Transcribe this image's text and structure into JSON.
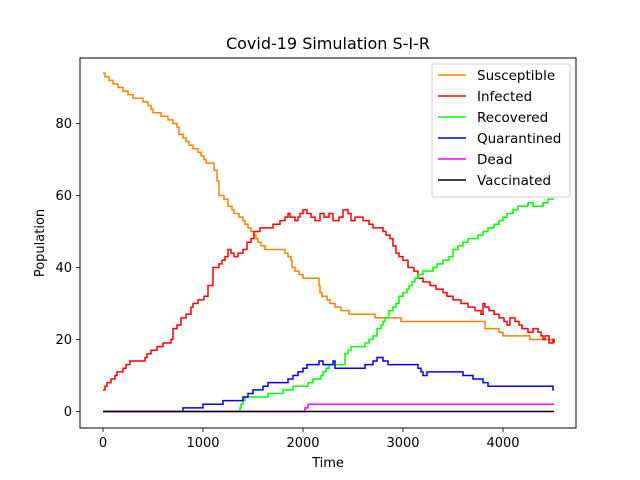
{
  "chart_data": {
    "type": "line",
    "title": "Covid-19 Simulation S-I-R",
    "xlabel": "Time",
    "ylabel": "Population",
    "xlim": [
      -230,
      4730
    ],
    "ylim": [
      -4.6,
      98.2
    ],
    "x_ticks": [
      0,
      1000,
      2000,
      3000,
      4000
    ],
    "x_tick_labels": [
      "0",
      "1000",
      "2000",
      "3000",
      "4000"
    ],
    "y_ticks": [
      0,
      20,
      40,
      60,
      80
    ],
    "y_tick_labels": [
      "0",
      "20",
      "40",
      "60",
      "80"
    ],
    "grid": false,
    "legend_position": "upper-right",
    "series": [
      {
        "name": "Susceptible",
        "color": "#ff8000",
        "points": [
          [
            0,
            94
          ],
          [
            20,
            93
          ],
          [
            60,
            92
          ],
          [
            100,
            91
          ],
          [
            150,
            90
          ],
          [
            200,
            89
          ],
          [
            250,
            88
          ],
          [
            300,
            87
          ],
          [
            400,
            86
          ],
          [
            450,
            85
          ],
          [
            480,
            84
          ],
          [
            500,
            83
          ],
          [
            580,
            82
          ],
          [
            650,
            81
          ],
          [
            700,
            80
          ],
          [
            740,
            79
          ],
          [
            760,
            77
          ],
          [
            800,
            76
          ],
          [
            830,
            75
          ],
          [
            860,
            74
          ],
          [
            900,
            73
          ],
          [
            950,
            72
          ],
          [
            980,
            71
          ],
          [
            1010,
            70
          ],
          [
            1030,
            69
          ],
          [
            1080,
            69
          ],
          [
            1110,
            67
          ],
          [
            1140,
            64
          ],
          [
            1160,
            60
          ],
          [
            1210,
            59
          ],
          [
            1250,
            57
          ],
          [
            1290,
            56
          ],
          [
            1310,
            55
          ],
          [
            1360,
            54
          ],
          [
            1400,
            53
          ],
          [
            1420,
            52
          ],
          [
            1450,
            51
          ],
          [
            1480,
            50
          ],
          [
            1510,
            49
          ],
          [
            1530,
            48
          ],
          [
            1550,
            47
          ],
          [
            1580,
            46
          ],
          [
            1620,
            45
          ],
          [
            1660,
            45
          ],
          [
            1800,
            45
          ],
          [
            1820,
            44
          ],
          [
            1850,
            43
          ],
          [
            1880,
            42
          ],
          [
            1890,
            40
          ],
          [
            1920,
            39
          ],
          [
            1960,
            38
          ],
          [
            2000,
            37
          ],
          [
            2140,
            37
          ],
          [
            2160,
            35
          ],
          [
            2170,
            33
          ],
          [
            2190,
            32
          ],
          [
            2240,
            31
          ],
          [
            2270,
            30
          ],
          [
            2320,
            29
          ],
          [
            2380,
            28
          ],
          [
            2460,
            27
          ],
          [
            2720,
            26
          ],
          [
            2980,
            25
          ],
          [
            3800,
            25
          ],
          [
            3820,
            23
          ],
          [
            3960,
            22
          ],
          [
            4000,
            21
          ],
          [
            4200,
            21
          ],
          [
            4270,
            20
          ],
          [
            4500,
            20
          ],
          [
            4510,
            19
          ]
        ]
      },
      {
        "name": "Infected",
        "color": "#ff0000",
        "points": [
          [
            0,
            6
          ],
          [
            20,
            7
          ],
          [
            40,
            8
          ],
          [
            80,
            9
          ],
          [
            120,
            10
          ],
          [
            140,
            11
          ],
          [
            200,
            12
          ],
          [
            230,
            13
          ],
          [
            270,
            14
          ],
          [
            320,
            14
          ],
          [
            420,
            15
          ],
          [
            440,
            16
          ],
          [
            480,
            17
          ],
          [
            540,
            18
          ],
          [
            600,
            19
          ],
          [
            680,
            20
          ],
          [
            700,
            23
          ],
          [
            740,
            24
          ],
          [
            780,
            26
          ],
          [
            830,
            27
          ],
          [
            880,
            29
          ],
          [
            900,
            30
          ],
          [
            950,
            31
          ],
          [
            1010,
            32
          ],
          [
            1050,
            35
          ],
          [
            1100,
            40
          ],
          [
            1160,
            41
          ],
          [
            1190,
            42
          ],
          [
            1220,
            43
          ],
          [
            1250,
            45
          ],
          [
            1280,
            44
          ],
          [
            1310,
            43
          ],
          [
            1350,
            44
          ],
          [
            1400,
            45
          ],
          [
            1440,
            47
          ],
          [
            1480,
            48
          ],
          [
            1510,
            50
          ],
          [
            1570,
            51
          ],
          [
            1630,
            51
          ],
          [
            1700,
            52
          ],
          [
            1770,
            53
          ],
          [
            1820,
            54
          ],
          [
            1850,
            55
          ],
          [
            1870,
            54
          ],
          [
            1920,
            53
          ],
          [
            1950,
            54
          ],
          [
            1970,
            55
          ],
          [
            2000,
            56
          ],
          [
            2040,
            55
          ],
          [
            2080,
            54
          ],
          [
            2120,
            53
          ],
          [
            2170,
            55
          ],
          [
            2210,
            54
          ],
          [
            2260,
            55
          ],
          [
            2300,
            53
          ],
          [
            2360,
            54
          ],
          [
            2400,
            56
          ],
          [
            2450,
            55
          ],
          [
            2480,
            53
          ],
          [
            2520,
            54
          ],
          [
            2600,
            53
          ],
          [
            2660,
            52
          ],
          [
            2700,
            51
          ],
          [
            2800,
            50
          ],
          [
            2830,
            49
          ],
          [
            2870,
            48
          ],
          [
            2900,
            46
          ],
          [
            2930,
            44
          ],
          [
            2960,
            43
          ],
          [
            3000,
            42
          ],
          [
            3050,
            40
          ],
          [
            3110,
            39
          ],
          [
            3150,
            37
          ],
          [
            3200,
            36
          ],
          [
            3270,
            35
          ],
          [
            3330,
            34
          ],
          [
            3400,
            33
          ],
          [
            3440,
            32
          ],
          [
            3500,
            31
          ],
          [
            3580,
            30
          ],
          [
            3650,
            29
          ],
          [
            3720,
            28
          ],
          [
            3780,
            27
          ],
          [
            3800,
            30
          ],
          [
            3820,
            29
          ],
          [
            3860,
            28
          ],
          [
            3910,
            27
          ],
          [
            3960,
            26
          ],
          [
            4010,
            25
          ],
          [
            4040,
            24
          ],
          [
            4070,
            26
          ],
          [
            4120,
            25
          ],
          [
            4160,
            24
          ],
          [
            4190,
            23
          ],
          [
            4250,
            22
          ],
          [
            4300,
            23
          ],
          [
            4350,
            22
          ],
          [
            4380,
            21
          ],
          [
            4400,
            20
          ],
          [
            4420,
            21
          ],
          [
            4460,
            19
          ],
          [
            4500,
            20
          ],
          [
            4510,
            19
          ]
        ]
      },
      {
        "name": "Recovered",
        "color": "#00ff00",
        "points": [
          [
            1350,
            0
          ],
          [
            1370,
            1
          ],
          [
            1380,
            2
          ],
          [
            1400,
            3
          ],
          [
            1420,
            4
          ],
          [
            1600,
            4
          ],
          [
            1650,
            5
          ],
          [
            1750,
            5
          ],
          [
            1800,
            6
          ],
          [
            1900,
            7
          ],
          [
            2000,
            7
          ],
          [
            2050,
            8
          ],
          [
            2100,
            9
          ],
          [
            2180,
            10
          ],
          [
            2200,
            11
          ],
          [
            2230,
            12
          ],
          [
            2260,
            13
          ],
          [
            2390,
            13
          ],
          [
            2420,
            16
          ],
          [
            2450,
            17
          ],
          [
            2480,
            18
          ],
          [
            2600,
            18
          ],
          [
            2620,
            19
          ],
          [
            2660,
            20
          ],
          [
            2700,
            21
          ],
          [
            2740,
            23
          ],
          [
            2780,
            24
          ],
          [
            2800,
            25
          ],
          [
            2820,
            26
          ],
          [
            2860,
            28
          ],
          [
            2900,
            29
          ],
          [
            2930,
            30
          ],
          [
            2960,
            32
          ],
          [
            3000,
            33
          ],
          [
            3040,
            34
          ],
          [
            3060,
            35
          ],
          [
            3090,
            36
          ],
          [
            3120,
            37
          ],
          [
            3150,
            38
          ],
          [
            3200,
            39
          ],
          [
            3300,
            40
          ],
          [
            3340,
            41
          ],
          [
            3400,
            42
          ],
          [
            3460,
            43
          ],
          [
            3500,
            45
          ],
          [
            3550,
            46
          ],
          [
            3600,
            47
          ],
          [
            3650,
            48
          ],
          [
            3750,
            49
          ],
          [
            3800,
            50
          ],
          [
            3850,
            51
          ],
          [
            3910,
            52
          ],
          [
            3960,
            53
          ],
          [
            4000,
            54
          ],
          [
            4040,
            55
          ],
          [
            4100,
            56
          ],
          [
            4150,
            57
          ],
          [
            4190,
            57
          ],
          [
            4250,
            58
          ],
          [
            4300,
            57
          ],
          [
            4400,
            58
          ],
          [
            4450,
            59
          ],
          [
            4500,
            59
          ],
          [
            4510,
            59
          ]
        ]
      },
      {
        "name": "Quarantined",
        "color": "#0000ff",
        "points": [
          [
            0,
            0
          ],
          [
            500,
            0
          ],
          [
            790,
            0
          ],
          [
            800,
            1
          ],
          [
            1000,
            2
          ],
          [
            1200,
            3
          ],
          [
            1400,
            4
          ],
          [
            1450,
            5
          ],
          [
            1500,
            6
          ],
          [
            1600,
            7
          ],
          [
            1650,
            8
          ],
          [
            1850,
            9
          ],
          [
            1900,
            10
          ],
          [
            1950,
            11
          ],
          [
            2000,
            12
          ],
          [
            2040,
            13
          ],
          [
            2160,
            14
          ],
          [
            2200,
            13
          ],
          [
            2280,
            13
          ],
          [
            2300,
            14
          ],
          [
            2320,
            12
          ],
          [
            2580,
            12
          ],
          [
            2620,
            13
          ],
          [
            2700,
            14
          ],
          [
            2740,
            15
          ],
          [
            2800,
            14
          ],
          [
            2850,
            13
          ],
          [
            3000,
            13
          ],
          [
            3150,
            12
          ],
          [
            3180,
            11
          ],
          [
            3200,
            10
          ],
          [
            3240,
            11
          ],
          [
            3500,
            11
          ],
          [
            3600,
            10
          ],
          [
            3700,
            9
          ],
          [
            3800,
            8
          ],
          [
            3850,
            7
          ],
          [
            4000,
            7
          ],
          [
            4500,
            6
          ],
          [
            4510,
            6
          ]
        ]
      },
      {
        "name": "Dead",
        "color": "#ff00ff",
        "points": [
          [
            0,
            0
          ],
          [
            2000,
            0
          ],
          [
            2020,
            1
          ],
          [
            2050,
            2
          ],
          [
            4510,
            2
          ]
        ]
      },
      {
        "name": "Vaccinated",
        "color": "#000000",
        "points": [
          [
            0,
            0
          ],
          [
            4510,
            0
          ]
        ]
      }
    ]
  }
}
